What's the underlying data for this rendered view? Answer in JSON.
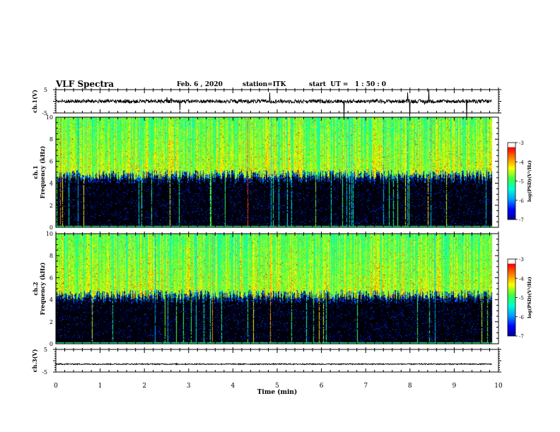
{
  "header": {
    "title": "VLF Spectra",
    "date": "Feb. 6 , 2020",
    "station": "station=ITK",
    "start": "start  UT =   1 : 50 : 0"
  },
  "chart_data": [
    {
      "type": "line",
      "ylabel": "ch.1(V)",
      "ylim": [
        -5,
        5
      ],
      "yticks": [
        "5",
        "-5"
      ],
      "xlim": [
        0,
        10
      ],
      "series_summary": "noisy trace near 0 V with occasional spikes",
      "trace_level": 0
    },
    {
      "type": "heatmap",
      "ylabel_top": "ch.1",
      "ylabel": "Frequency (kHz)",
      "xlim": [
        0,
        10
      ],
      "ylim": [
        0,
        10
      ],
      "yticks": [
        "0",
        "2",
        "4",
        "6",
        "8",
        "10"
      ],
      "data_end_min": 9.85,
      "background_cutoff_khz": 4.8,
      "colorbar": {
        "label": "log(PSD)(V²/Hz)",
        "range": [
          -7,
          -3
        ],
        "ticks": [
          "-3",
          "-4",
          "-5",
          "-6",
          "-7"
        ]
      }
    },
    {
      "type": "heatmap",
      "ylabel_top": "ch.2",
      "ylabel": "Frequency (kHz)",
      "xlim": [
        0,
        10
      ],
      "ylim": [
        0,
        10
      ],
      "yticks": [
        "0",
        "2",
        "4",
        "6",
        "8",
        "10"
      ],
      "data_end_min": 9.85,
      "background_cutoff_khz": 4.5,
      "colorbar": {
        "label": "log(PSD)(V²/Hz)",
        "range": [
          -7,
          -3
        ],
        "ticks": [
          "-3",
          "-4",
          "-5",
          "-6",
          "-7"
        ]
      }
    },
    {
      "type": "line",
      "ylabel": "ch.3(V)",
      "ylim": [
        -5,
        5
      ],
      "yticks": [
        "5",
        "-5"
      ],
      "xlim": [
        0,
        10
      ],
      "trace_level": -1.5
    }
  ],
  "xaxis": {
    "label": "Time (min)",
    "ticks": [
      "0",
      "1",
      "2",
      "3",
      "4",
      "5",
      "6",
      "7",
      "8",
      "9",
      "10"
    ]
  },
  "colors": {
    "colormap": [
      "#000090",
      "#0000ff",
      "#00a0ff",
      "#00ffd0",
      "#40ff40",
      "#ffff00",
      "#ff8000",
      "#ff0000",
      "#ffffff"
    ]
  }
}
